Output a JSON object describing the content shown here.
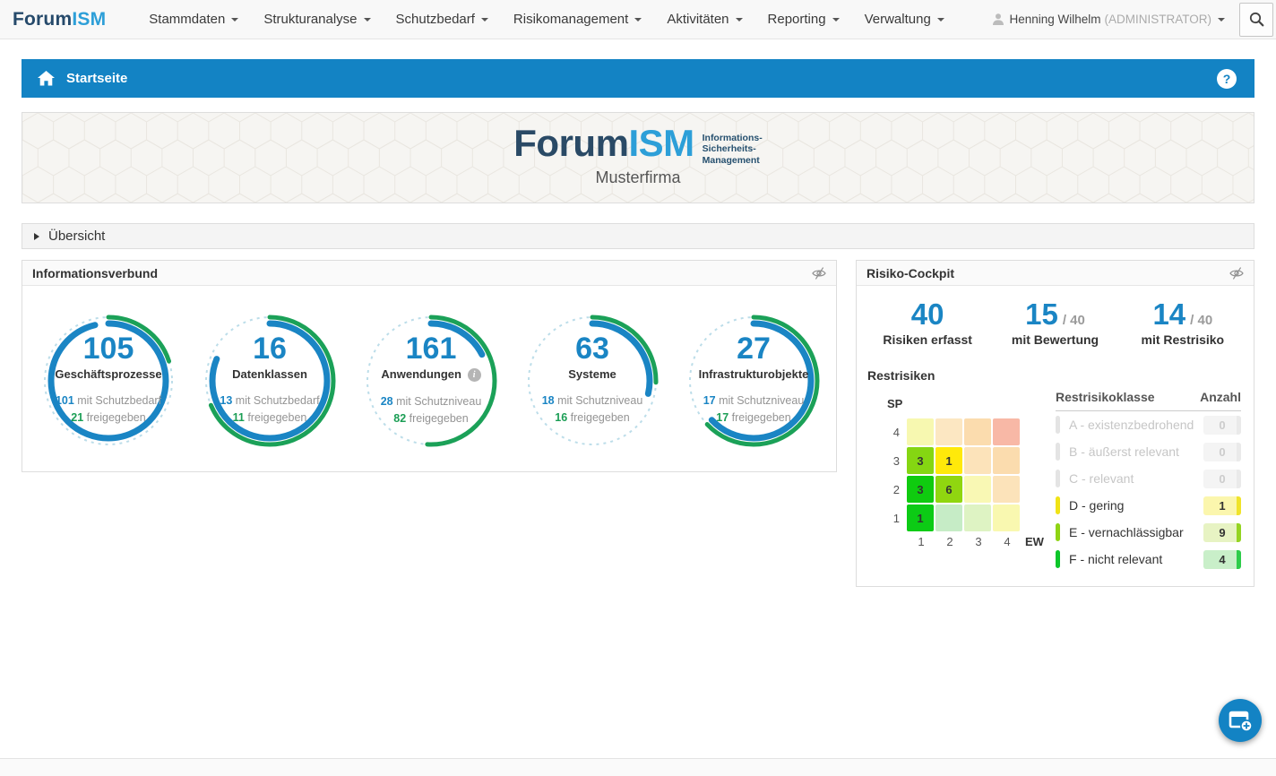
{
  "topnav": {
    "logo": {
      "part1": "Forum",
      "part2": "ISM"
    },
    "items": [
      {
        "label": "Stammdaten"
      },
      {
        "label": "Strukturanalyse"
      },
      {
        "label": "Schutzbedarf"
      },
      {
        "label": "Risikomanagement"
      },
      {
        "label": "Aktivitäten"
      },
      {
        "label": "Reporting"
      },
      {
        "label": "Verwaltung"
      }
    ],
    "user": {
      "name": "Henning Wilhelm",
      "role": "(ADMINISTRATOR)"
    }
  },
  "breadcrumb": {
    "title": "Startseite",
    "help_label": "?"
  },
  "banner": {
    "logo_part1": "Forum",
    "logo_part2": "ISM",
    "tagline": [
      "Informations-",
      "Sicherheits-",
      "Management"
    ],
    "company": "Musterfirma"
  },
  "overview": {
    "label": "Übersicht"
  },
  "infoverbund": {
    "title": "Informationsverbund",
    "stats": [
      {
        "value": "105",
        "label": "Geschäftsprozesse",
        "info": false,
        "line1_value": "101",
        "line1_text": "mit Schutzbedarf",
        "line2_value": "21",
        "line2_text": "freigegeben",
        "blue_pct": 0.962,
        "green_pct": 0.2
      },
      {
        "value": "16",
        "label": "Datenklassen",
        "info": false,
        "line1_value": "13",
        "line1_text": "mit Schutzbedarf",
        "line2_value": "11",
        "line2_text": "freigegeben",
        "blue_pct": 0.812,
        "green_pct": 0.687
      },
      {
        "value": "161",
        "label": "Anwendungen",
        "info": true,
        "line1_value": "28",
        "line1_text": "mit Schutzniveau",
        "line2_value": "82",
        "line2_text": "freigegeben",
        "blue_pct": 0.174,
        "green_pct": 0.509
      },
      {
        "value": "63",
        "label": "Systeme",
        "info": false,
        "line1_value": "18",
        "line1_text": "mit Schutzniveau",
        "line2_value": "16",
        "line2_text": "freigegeben",
        "blue_pct": 0.286,
        "green_pct": 0.254
      },
      {
        "value": "27",
        "label": "Infrastrukturobjekte",
        "info": false,
        "line1_value": "17",
        "line1_text": "mit Schutzniveau",
        "line2_value": "17",
        "line2_text": "freigegeben",
        "blue_pct": 0.63,
        "green_pct": 0.63
      }
    ]
  },
  "risk_cockpit": {
    "title": "Risiko-Cockpit",
    "stats": [
      {
        "value": "40",
        "suffix": "",
        "label": "Risiken erfasst"
      },
      {
        "value": "15",
        "suffix": "/ 40",
        "label": "mit Bewertung"
      },
      {
        "value": "14",
        "suffix": "/ 40",
        "label": "mit Restrisiko"
      }
    ],
    "restrisiken": {
      "title": "Restrisiken",
      "y_axis": "SP",
      "x_axis": "EW",
      "row_labels": [
        "4",
        "3",
        "2",
        "1"
      ],
      "col_labels": [
        "1",
        "2",
        "3",
        "4"
      ],
      "cells": [
        [
          {
            "v": "",
            "c": "#f7f8b0"
          },
          {
            "v": "",
            "c": "#fce7c2"
          },
          {
            "v": "",
            "c": "#fbdcae"
          },
          {
            "v": "",
            "c": "#f8b8a6"
          }
        ],
        [
          {
            "v": "3",
            "c": "#85d612"
          },
          {
            "v": "1",
            "c": "#ffe90a"
          },
          {
            "v": "",
            "c": "#fce3ba"
          },
          {
            "v": "",
            "c": "#fbdcae"
          }
        ],
        [
          {
            "v": "3",
            "c": "#0fcb0f"
          },
          {
            "v": "6",
            "c": "#90d610"
          },
          {
            "v": "",
            "c": "#f9f8b4"
          },
          {
            "v": "",
            "c": "#fce3ba"
          }
        ],
        [
          {
            "v": "1",
            "c": "#0ccb15"
          },
          {
            "v": "",
            "c": "#c6ecc6"
          },
          {
            "v": "",
            "c": "#def3c3"
          },
          {
            "v": "",
            "c": "#f9f8b0"
          }
        ]
      ]
    },
    "table": {
      "headers": [
        "Restrisikoklasse",
        "Anzahl"
      ],
      "rows": [
        {
          "label": "A - existenzbedrohend",
          "count": "0",
          "muted": true,
          "bar_color": "#e4e4e4",
          "badge_bg": "#f4f4f4",
          "edge_color": "#eaeaea"
        },
        {
          "label": "B - äußerst relevant",
          "count": "0",
          "muted": true,
          "bar_color": "#e4e4e4",
          "badge_bg": "#f4f4f4",
          "edge_color": "#eaeaea"
        },
        {
          "label": "C - relevant",
          "count": "0",
          "muted": true,
          "bar_color": "#e4e4e4",
          "badge_bg": "#f4f4f4",
          "edge_color": "#eaeaea"
        },
        {
          "label": "D - gering",
          "count": "1",
          "muted": false,
          "bar_color": "#f0e316",
          "badge_bg": "#fbf6ad",
          "edge_color": "#f0e32a"
        },
        {
          "label": "E - vernachlässigbar",
          "count": "9",
          "muted": false,
          "bar_color": "#8fd414",
          "badge_bg": "#e7f3c3",
          "edge_color": "#94d422"
        },
        {
          "label": "F - nicht relevant",
          "count": "4",
          "muted": false,
          "bar_color": "#0cc62a",
          "badge_bg": "#c9efc9",
          "edge_color": "#2ecc4a"
        }
      ]
    }
  },
  "icons": {
    "info_glyph": "i"
  },
  "colors": {
    "primary_blue": "#1a85c4",
    "green_arc": "#1ba158",
    "bar_blue": "#1383c4"
  }
}
